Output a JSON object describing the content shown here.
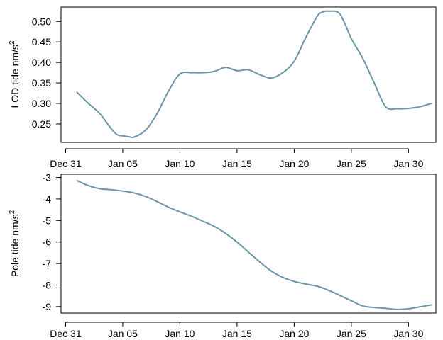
{
  "chart_data": [
    {
      "type": "line",
      "ylabel": "LOD tide nm/s",
      "ylabel_sup": "2",
      "xlabel": "",
      "x_tick_labels": [
        "Dec 31",
        "Jan 05",
        "Jan 10",
        "Jan 15",
        "Jan 20",
        "Jan 25",
        "Jan 30"
      ],
      "x_tick_days": [
        0,
        5,
        10,
        15,
        20,
        25,
        30
      ],
      "xlim_days": [
        -0.4,
        32.4
      ],
      "ylim": [
        0.205,
        0.535
      ],
      "y_ticks": [
        0.25,
        0.3,
        0.35,
        0.4,
        0.45,
        0.5
      ],
      "y_tick_labels": [
        "0.25",
        "0.30",
        "0.35",
        "0.40",
        "0.45",
        "0.50"
      ],
      "grid": false,
      "line_color": "#6b95a8",
      "series": [
        {
          "x_days": [
            1,
            2,
            3,
            4,
            4.5,
            5,
            5.5,
            6,
            7,
            8,
            9,
            10,
            11,
            12,
            13,
            14,
            15,
            16,
            17,
            18,
            19,
            20,
            21,
            22,
            22.5,
            23,
            24,
            25,
            26,
            27,
            28,
            29,
            30,
            31,
            32
          ],
          "values": [
            0.327,
            0.3,
            0.275,
            0.238,
            0.224,
            0.221,
            0.219,
            0.218,
            0.235,
            0.275,
            0.33,
            0.372,
            0.375,
            0.375,
            0.378,
            0.388,
            0.38,
            0.382,
            0.37,
            0.362,
            0.375,
            0.403,
            0.46,
            0.512,
            0.523,
            0.525,
            0.518,
            0.458,
            0.41,
            0.35,
            0.292,
            0.287,
            0.288,
            0.292,
            0.3
          ]
        }
      ]
    },
    {
      "type": "line",
      "ylabel": "Pole tide nm/s",
      "ylabel_sup": "2",
      "xlabel": "",
      "x_tick_labels": [
        "Dec 31",
        "Jan 05",
        "Jan 10",
        "Jan 15",
        "Jan 20",
        "Jan 25",
        "Jan 30"
      ],
      "x_tick_days": [
        0,
        5,
        10,
        15,
        20,
        25,
        30
      ],
      "xlim_days": [
        -0.4,
        32.4
      ],
      "ylim": [
        -9.3,
        -2.85
      ],
      "y_ticks": [
        -9,
        -8,
        -7,
        -6,
        -5,
        -4,
        -3
      ],
      "y_tick_labels": [
        "-9",
        "-8",
        "-7",
        "-6",
        "-5",
        "-4",
        "-3"
      ],
      "grid": false,
      "line_color": "#6b95a8",
      "series": [
        {
          "x_days": [
            1,
            2,
            3,
            4,
            5,
            6,
            7,
            8,
            9,
            10,
            11,
            12,
            13,
            14,
            15,
            16,
            17,
            18,
            19,
            20,
            21,
            22,
            23,
            24,
            25,
            26,
            27,
            28,
            29,
            30,
            31,
            32
          ],
          "values": [
            -3.15,
            -3.38,
            -3.52,
            -3.57,
            -3.63,
            -3.72,
            -3.88,
            -4.12,
            -4.38,
            -4.6,
            -4.8,
            -5.03,
            -5.27,
            -5.6,
            -6.0,
            -6.47,
            -6.93,
            -7.35,
            -7.64,
            -7.83,
            -7.95,
            -8.05,
            -8.24,
            -8.48,
            -8.73,
            -8.97,
            -9.04,
            -9.08,
            -9.13,
            -9.1,
            -9.01,
            -8.92
          ]
        }
      ]
    }
  ]
}
